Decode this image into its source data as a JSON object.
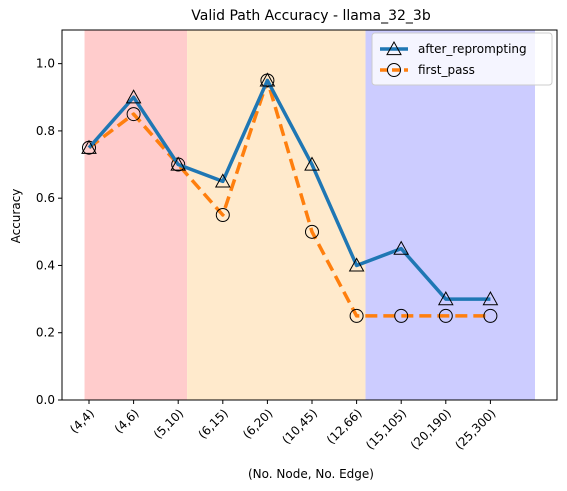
{
  "chart_data": {
    "type": "line",
    "title": "Valid Path Accuracy - llama_32_3b",
    "xlabel": "(No. Node, No. Edge)",
    "ylabel": "Accuracy",
    "categories": [
      "(4,4)",
      "(4,6)",
      "(5,10)",
      "(6,15)",
      "(6,20)",
      "(10,45)",
      "(12,66)",
      "(15,105)",
      "(20,190)",
      "(25,300)"
    ],
    "ylim": [
      0.0,
      1.1
    ],
    "yticks": [
      "0.0",
      "0.2",
      "0.4",
      "0.6",
      "0.8",
      "1.0"
    ],
    "grid": false,
    "legend_position": "top-right",
    "series": [
      {
        "name": "after_reprompting",
        "values": [
          0.75,
          0.9,
          0.7,
          0.65,
          0.95,
          0.7,
          0.4,
          0.45,
          0.3,
          0.3
        ],
        "color": "#1f77b4",
        "linestyle": "solid",
        "marker": "triangle"
      },
      {
        "name": "first_pass",
        "values": [
          0.75,
          0.85,
          0.7,
          0.55,
          0.95,
          0.5,
          0.25,
          0.25,
          0.25,
          0.25
        ],
        "color": "#ff7f0e",
        "linestyle": "dashed",
        "marker": "circle"
      }
    ],
    "bands": [
      {
        "from_index": -0.1,
        "to_index": 2.2,
        "color": "#ffcccc"
      },
      {
        "from_index": 2.2,
        "to_index": 6.2,
        "color": "#ffeacc"
      },
      {
        "from_index": 6.2,
        "to_index": 10.0,
        "color": "#ccccff"
      }
    ]
  }
}
